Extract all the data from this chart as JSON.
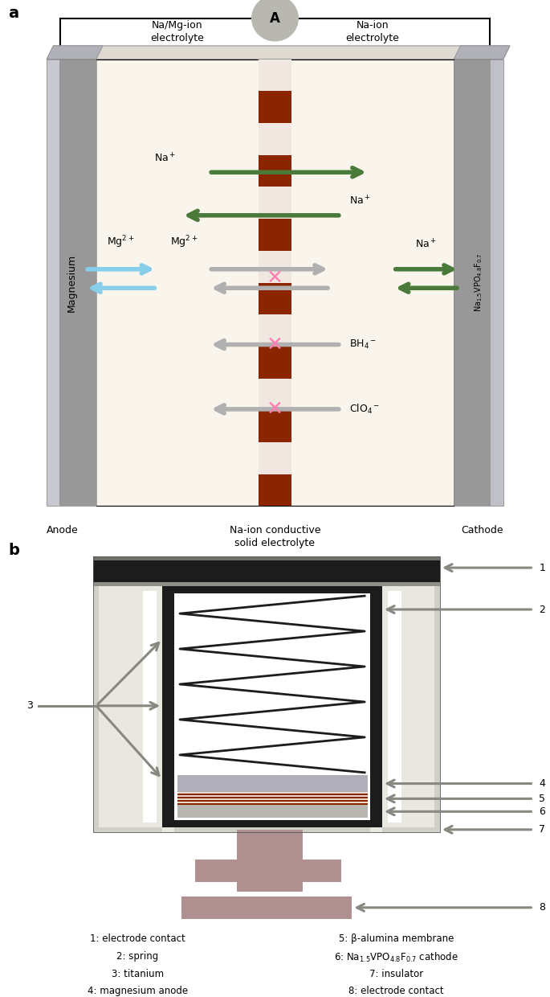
{
  "fig_width": 6.85,
  "fig_height": 12.4,
  "bg_color": "#ffffff",
  "panel_b_legend": [
    "1: electrode contact",
    "2: spring",
    "3: titanium",
    "4: magnesium anode",
    "5: β-alumina membrane",
    "6: Na₁.₅VPO₄.₈F₀.₇ cathode",
    "7: insulator",
    "8: electrode contact"
  ]
}
